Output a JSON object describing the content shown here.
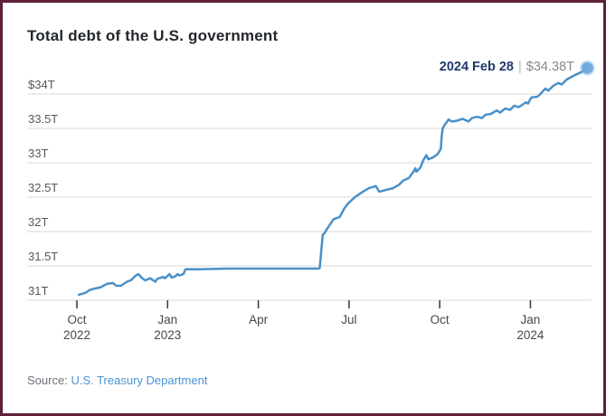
{
  "header": {
    "title": "Total debt of the U.S. government"
  },
  "annotation": {
    "date": "2024 Feb 28",
    "separator": "|",
    "value": "$34.38T"
  },
  "source": {
    "label": "Source:",
    "link": "U.S. Treasury Department"
  },
  "colors": {
    "line": "#4a90c8",
    "dot": "#6fa9dc",
    "grid": "#d9d9d9",
    "tick": "#33363b",
    "border": "#5e203a",
    "annotation_date": "#1c3a69",
    "annotation_value": "#85888e",
    "link": "#4a93d6"
  },
  "chart_data": {
    "type": "line",
    "title": "Total debt of the U.S. government",
    "unit": "trillion USD",
    "xlabel": "",
    "ylabel": "",
    "ylim": [
      31,
      34.5
    ],
    "grid": "horizontal",
    "legend": "none",
    "yticks": [
      {
        "label": "$34T",
        "value": 34
      },
      {
        "label": "33.5T",
        "value": 33.5
      },
      {
        "label": "33T",
        "value": 33
      },
      {
        "label": "32.5T",
        "value": 32.5
      },
      {
        "label": "32T",
        "value": 32
      },
      {
        "label": "31.5T",
        "value": 31.5
      },
      {
        "label": "31T",
        "value": 31
      }
    ],
    "xticks": [
      {
        "label": "Oct",
        "year": "2022",
        "date": "2022-10-01"
      },
      {
        "label": "Jan",
        "year": "2023",
        "date": "2023-01-01"
      },
      {
        "label": "Apr",
        "year": "",
        "date": "2023-04-01"
      },
      {
        "label": "Jul",
        "year": "",
        "date": "2023-07-01"
      },
      {
        "label": "Oct",
        "year": "",
        "date": "2023-10-01"
      },
      {
        "label": "Jan",
        "year": "2024",
        "date": "2024-01-01"
      }
    ],
    "series": [
      {
        "name": "Total debt",
        "points": [
          [
            "2022-10-03",
            31.08
          ],
          [
            "2022-10-10",
            31.11
          ],
          [
            "2022-10-14",
            31.15
          ],
          [
            "2022-10-19",
            31.17
          ],
          [
            "2022-10-25",
            31.19
          ],
          [
            "2022-11-01",
            31.24
          ],
          [
            "2022-11-07",
            31.25
          ],
          [
            "2022-11-10",
            31.21
          ],
          [
            "2022-11-15",
            31.21
          ],
          [
            "2022-11-21",
            31.27
          ],
          [
            "2022-11-25",
            31.29
          ],
          [
            "2022-11-30",
            31.36
          ],
          [
            "2022-12-02",
            31.38
          ],
          [
            "2022-12-06",
            31.32
          ],
          [
            "2022-12-09",
            31.29
          ],
          [
            "2022-12-14",
            31.32
          ],
          [
            "2022-12-19",
            31.27
          ],
          [
            "2022-12-21",
            31.31
          ],
          [
            "2022-12-27",
            31.34
          ],
          [
            "2022-12-29",
            31.32
          ],
          [
            "2023-01-03",
            31.38
          ],
          [
            "2023-01-05",
            31.33
          ],
          [
            "2023-01-09",
            31.35
          ],
          [
            "2023-01-11",
            31.38
          ],
          [
            "2023-01-13",
            31.36
          ],
          [
            "2023-01-17",
            31.38
          ],
          [
            "2023-01-19",
            31.45
          ],
          [
            "2023-02-01",
            31.45
          ],
          [
            "2023-03-01",
            31.46
          ],
          [
            "2023-04-03",
            31.46
          ],
          [
            "2023-05-01",
            31.46
          ],
          [
            "2023-06-01",
            31.46
          ],
          [
            "2023-06-02",
            31.47
          ],
          [
            "2023-06-05",
            31.95
          ],
          [
            "2023-06-07",
            31.98
          ],
          [
            "2023-06-09",
            32.03
          ],
          [
            "2023-06-14",
            32.14
          ],
          [
            "2023-06-16",
            32.18
          ],
          [
            "2023-06-22",
            32.21
          ],
          [
            "2023-06-27",
            32.34
          ],
          [
            "2023-06-30",
            32.4
          ],
          [
            "2023-07-07",
            32.5
          ],
          [
            "2023-07-14",
            32.57
          ],
          [
            "2023-07-21",
            32.63
          ],
          [
            "2023-07-28",
            32.66
          ],
          [
            "2023-08-01",
            32.58
          ],
          [
            "2023-08-04",
            32.59
          ],
          [
            "2023-08-09",
            32.61
          ],
          [
            "2023-08-15",
            32.63
          ],
          [
            "2023-08-21",
            32.68
          ],
          [
            "2023-08-25",
            32.74
          ],
          [
            "2023-08-31",
            32.78
          ],
          [
            "2023-09-05",
            32.87
          ],
          [
            "2023-09-07",
            32.92
          ],
          [
            "2023-09-08",
            32.87
          ],
          [
            "2023-09-12",
            32.93
          ],
          [
            "2023-09-15",
            33.04
          ],
          [
            "2023-09-18",
            33.11
          ],
          [
            "2023-09-20",
            33.05
          ],
          [
            "2023-09-25",
            33.08
          ],
          [
            "2023-09-29",
            33.12
          ],
          [
            "2023-10-02",
            33.2
          ],
          [
            "2023-10-03",
            33.39
          ],
          [
            "2023-10-04",
            33.5
          ],
          [
            "2023-10-06",
            33.55
          ],
          [
            "2023-10-10",
            33.63
          ],
          [
            "2023-10-13",
            33.6
          ],
          [
            "2023-10-18",
            33.61
          ],
          [
            "2023-10-24",
            33.64
          ],
          [
            "2023-10-30",
            33.6
          ],
          [
            "2023-11-03",
            33.65
          ],
          [
            "2023-11-08",
            33.67
          ],
          [
            "2023-11-13",
            33.65
          ],
          [
            "2023-11-17",
            33.7
          ],
          [
            "2023-11-22",
            33.71
          ],
          [
            "2023-11-28",
            33.76
          ],
          [
            "2023-12-01",
            33.73
          ],
          [
            "2023-12-06",
            33.79
          ],
          [
            "2023-12-11",
            33.77
          ],
          [
            "2023-12-15",
            33.83
          ],
          [
            "2023-12-20",
            33.81
          ],
          [
            "2023-12-27",
            33.88
          ],
          [
            "2023-12-29",
            33.86
          ],
          [
            "2024-01-02",
            33.95
          ],
          [
            "2024-01-08",
            33.96
          ],
          [
            "2024-01-11",
            34.0
          ],
          [
            "2024-01-16",
            34.08
          ],
          [
            "2024-01-19",
            34.05
          ],
          [
            "2024-01-24",
            34.12
          ],
          [
            "2024-01-29",
            34.16
          ],
          [
            "2024-02-02",
            34.14
          ],
          [
            "2024-02-07",
            34.21
          ],
          [
            "2024-02-12",
            34.25
          ],
          [
            "2024-02-16",
            34.28
          ],
          [
            "2024-02-22",
            34.32
          ],
          [
            "2024-02-26",
            34.35
          ],
          [
            "2024-02-28",
            34.38
          ]
        ]
      }
    ],
    "last_point": {
      "date": "2024-02-28",
      "value": 34.38
    }
  }
}
